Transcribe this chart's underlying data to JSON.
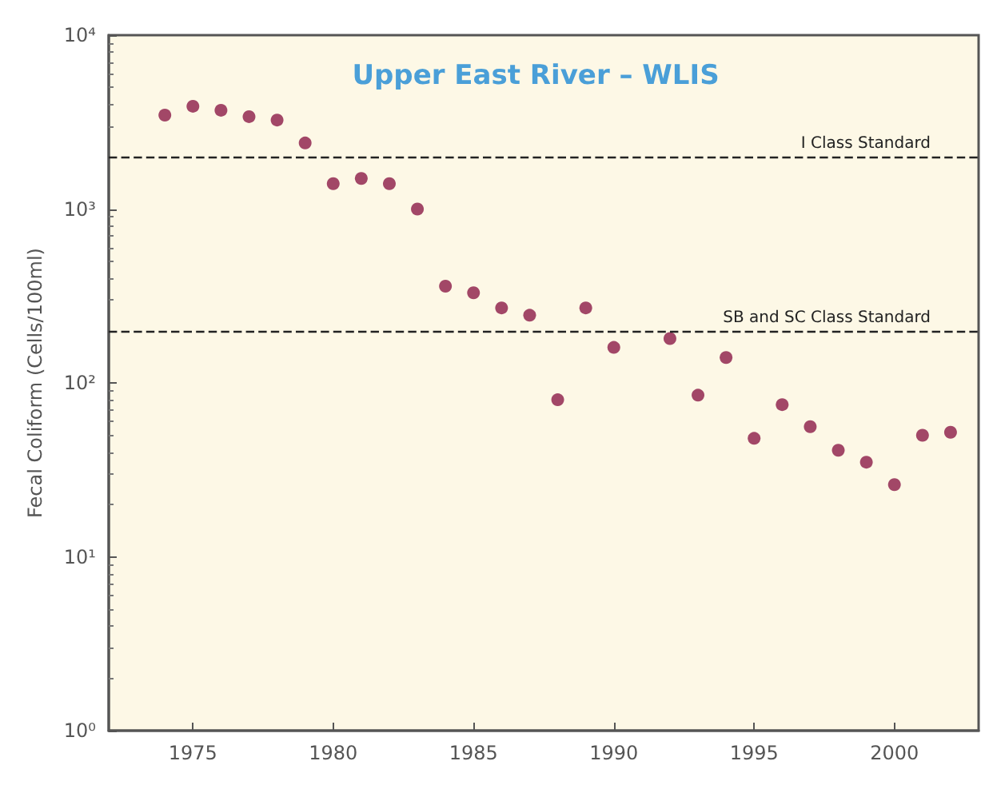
{
  "chart_data": {
    "type": "scatter",
    "title": "Upper East River – WLIS",
    "ylabel": "Fecal Coliform (Cells/100ml)",
    "x": [
      1974,
      1975,
      1976,
      1977,
      1978,
      1979,
      1980,
      1981,
      1982,
      1983,
      1984,
      1985,
      1986,
      1987,
      1988,
      1989,
      1990,
      1992,
      1993,
      1994,
      1995,
      1996,
      1997,
      1998,
      1999,
      2000,
      2001,
      2002
    ],
    "series": [
      {
        "color": "#8b1a47",
        "values": [
          3470,
          3900,
          3700,
          3400,
          3250,
          2400,
          1400,
          1500,
          1400,
          1000,
          360,
          330,
          270,
          245,
          80,
          270,
          160,
          180,
          85,
          140,
          48,
          75,
          56,
          41,
          35,
          26,
          50,
          52
        ]
      }
    ],
    "xlim": [
      1972,
      2003
    ],
    "xticks": [
      1975,
      1980,
      1985,
      1990,
      1995,
      2000
    ],
    "ylim": [
      1,
      10000
    ],
    "log": true,
    "yticks": [
      {
        "value": 1,
        "label": "10⁰"
      },
      {
        "value": 10,
        "label": "10¹"
      },
      {
        "value": 100,
        "label": "10²"
      },
      {
        "value": 1000,
        "label": "10³"
      },
      {
        "value": 10000,
        "label": "10⁴"
      }
    ],
    "ref_lines": [
      {
        "axis": "y",
        "value": 2000,
        "label": "I Class Standard",
        "color": "#222222",
        "line_style": "dashed"
      },
      {
        "axis": "y",
        "value": 200,
        "label": "SB and SC Class Standard",
        "color": "#222222",
        "line_style": "dashed"
      }
    ],
    "marker": "circle",
    "grid": false
  }
}
